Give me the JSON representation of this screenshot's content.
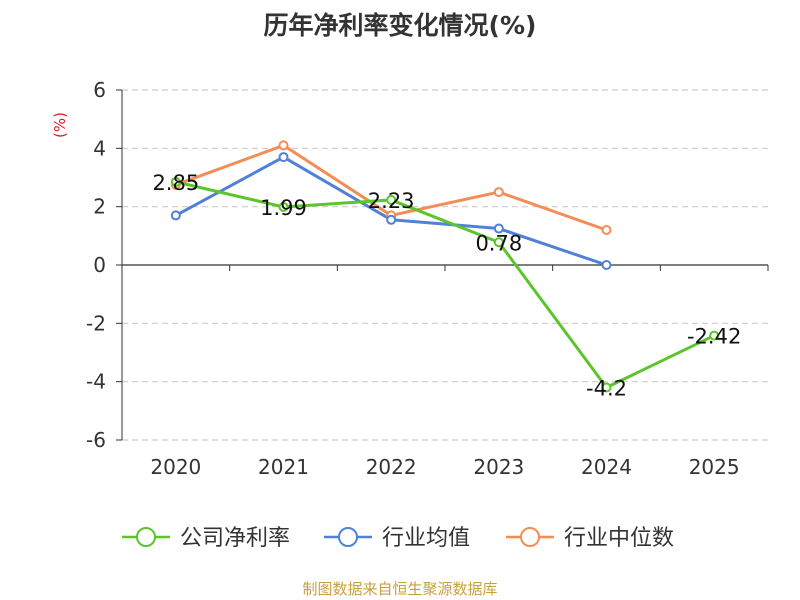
{
  "chart_data": {
    "type": "line",
    "title": "历年净利率变化情况(%)",
    "ylabel": "(%)",
    "xlabel": "",
    "categories": [
      "2020",
      "2021",
      "2022",
      "2023",
      "2024",
      "2025"
    ],
    "ylim": [
      -6,
      6
    ],
    "yticks": [
      -6,
      -4,
      -2,
      0,
      2,
      4,
      6
    ],
    "grid": true,
    "legend_position": "bottom",
    "series": [
      {
        "name": "公司净利率",
        "color": "#5cc52b",
        "values": [
          2.85,
          1.99,
          2.23,
          0.78,
          -4.2,
          -2.42
        ],
        "labels": [
          "2.85",
          "1.99",
          "2.23",
          "0.78",
          "-4.2",
          "-2.42"
        ]
      },
      {
        "name": "行业均值",
        "color": "#4f81d6",
        "values": [
          1.7,
          3.7,
          1.55,
          1.25,
          0.0,
          null
        ]
      },
      {
        "name": "行业中位数",
        "color": "#f48d55",
        "values": [
          2.75,
          4.1,
          1.7,
          2.5,
          1.2,
          null
        ]
      }
    ]
  },
  "source": "制图数据来自恒生聚源数据库"
}
